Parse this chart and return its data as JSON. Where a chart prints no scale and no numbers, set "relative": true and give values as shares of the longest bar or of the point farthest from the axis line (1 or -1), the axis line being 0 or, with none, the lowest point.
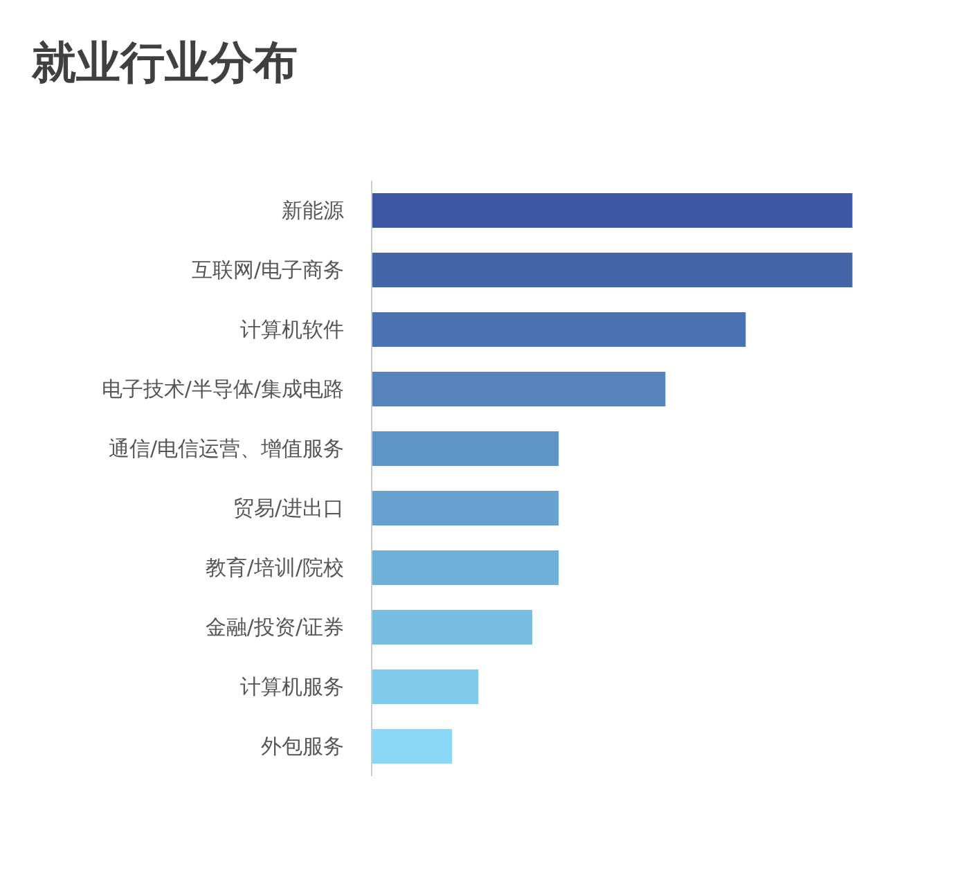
{
  "chart_data": {
    "type": "bar",
    "orientation": "horizontal",
    "relative": true,
    "title": "就业行业分布",
    "categories": [
      "新能源",
      "互联网/电子商务",
      "计算机软件",
      "电子技术/半导体/集成电路",
      "通信/电信运营、增值服务",
      "贸易/进出口",
      "教育/培训/院校",
      "金融/投资/证券",
      "计算机服务",
      "外包服务"
    ],
    "values": [
      1,
      1,
      0.778,
      0.611,
      0.389,
      0.389,
      0.389,
      0.334,
      0.222,
      0.167
    ],
    "colors": [
      "#3d57a3",
      "#4565a9",
      "#4a72b3",
      "#5584bd",
      "#5f94c6",
      "#67a2cf",
      "#6fb0d8",
      "#77bde2",
      "#80cbeb",
      "#8ad8f5"
    ]
  }
}
